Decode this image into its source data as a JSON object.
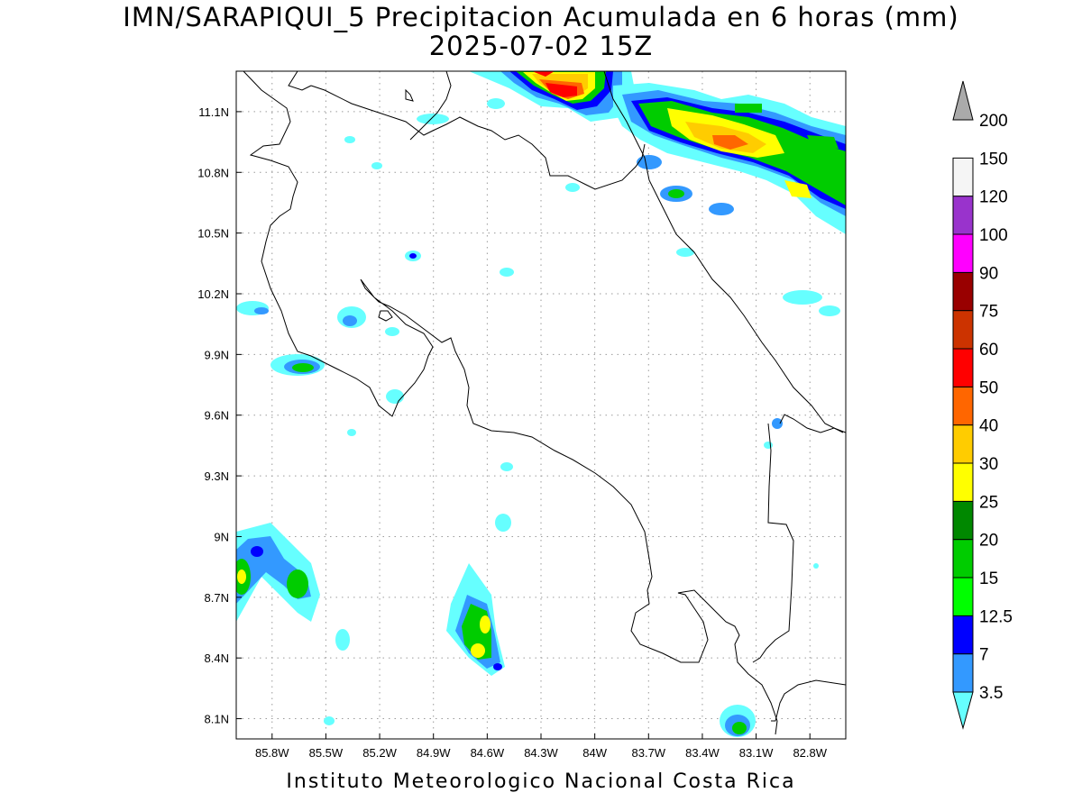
{
  "title": {
    "line1": "IMN/SARAPIQUI_5 Precipitacion Acumulada en 6 horas (mm)",
    "line2": "2025-07-02 15Z"
  },
  "footer": "Instituto Meteorologico Nacional Costa Rica",
  "map": {
    "lon_range": [
      -86.0,
      -82.6
    ],
    "lat_range": [
      8.0,
      11.3
    ],
    "lon_ticks": [
      "85.8W",
      "85.5W",
      "85.2W",
      "84.9W",
      "84.6W",
      "84.3W",
      "84W",
      "83.7W",
      "83.4W",
      "83.1W",
      "82.8W"
    ],
    "lat_ticks": [
      "8.1N",
      "8.4N",
      "8.7N",
      "9N",
      "9.3N",
      "9.6N",
      "9.9N",
      "10.2N",
      "10.5N",
      "10.8N",
      "11.1N"
    ],
    "grid": "dotted"
  },
  "colorbar": {
    "levels": [
      "3.5",
      "7",
      "12.5",
      "15",
      "20",
      "25",
      "30",
      "40",
      "50",
      "60",
      "75",
      "90",
      "100",
      "120",
      "150",
      "200"
    ],
    "colors": [
      "#66ffff",
      "#3399ff",
      "#0000ff",
      "#00ff00",
      "#00cc00",
      "#008800",
      "#ffff00",
      "#ffcc00",
      "#ff6600",
      "#ff0000",
      "#cc3300",
      "#990000",
      "#ff00ff",
      "#9933cc",
      "#f5f5f5",
      "#aaaaaa"
    ]
  }
}
